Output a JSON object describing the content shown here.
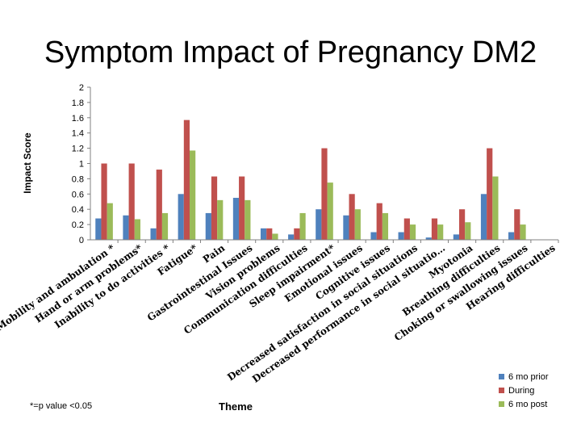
{
  "chart_data": {
    "type": "bar",
    "title": "Symptom Impact of Pregnancy DM2",
    "ylabel": "Impact Score",
    "xlabel": "Theme",
    "footnote": "*=p value <0.05",
    "ylim": [
      0,
      2
    ],
    "yticks": [
      "0",
      "0.2",
      "0.4",
      "0.6",
      "0.8",
      "1",
      "1.2",
      "1.4",
      "1.6",
      "1.8",
      "2"
    ],
    "categories": [
      "Mobility and ambulation *",
      "Hand or arm problems*",
      "Inability to do activities *",
      "Fatigue*",
      "Pain",
      "Gastrointestinal Issues",
      "Vision problems",
      "Communication difficulties",
      "Sleep impairment*",
      "Emotional issues",
      "Cognitive issues",
      "Decreased satisfaction in social situations",
      "Decreased performance in social situatio…",
      "Myotonia",
      "Breathing difficulties",
      "Choking or swallowing issues",
      "Hearing difficulties"
    ],
    "series": [
      {
        "name": "6 mo prior",
        "color": "#4F81BD",
        "values": [
          0.28,
          0.32,
          0.15,
          0.6,
          0.35,
          0.55,
          0.15,
          0.07,
          0.4,
          0.32,
          0.1,
          0.1,
          0.03,
          0.07,
          0.6,
          0.1,
          0
        ]
      },
      {
        "name": "During",
        "color": "#C0504D",
        "values": [
          1.0,
          1.0,
          0.92,
          1.57,
          0.83,
          0.83,
          0.15,
          0.15,
          1.2,
          0.6,
          0.48,
          0.28,
          0.28,
          0.4,
          1.2,
          0.4,
          0
        ]
      },
      {
        "name": "6 mo post",
        "color": "#9BBB59",
        "values": [
          0.48,
          0.27,
          0.35,
          1.17,
          0.52,
          0.52,
          0.08,
          0.35,
          0.75,
          0.4,
          0.35,
          0.2,
          0.2,
          0.23,
          0.83,
          0.2,
          0
        ]
      }
    ],
    "legend_position": "bottom-right"
  }
}
